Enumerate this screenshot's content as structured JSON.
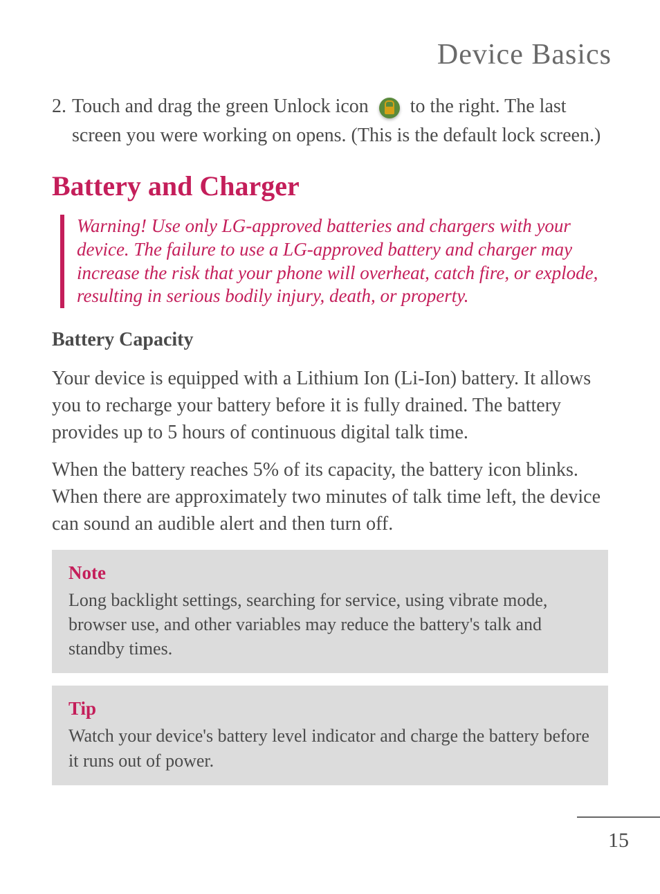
{
  "colors": {
    "accent": "#c41e5a",
    "body_text": "#4a4a4a",
    "header_text": "#6a6a6a",
    "callout_bg": "#dcdcdc",
    "page_bg": "#ffffff",
    "icon_bg": "#5a8a3a",
    "icon_lock": "#d4a017"
  },
  "typography": {
    "header_fontsize": 42,
    "section_title_fontsize": 40,
    "subsection_fontsize": 28,
    "body_fontsize": 28,
    "callout_title_fontsize": 27,
    "callout_text_fontsize": 26,
    "page_number_fontsize": 30,
    "font_family": "Georgia, serif"
  },
  "header": {
    "title": "Device Basics"
  },
  "step2": {
    "number": "2.",
    "text_before_icon": "Touch and drag the green Unlock icon ",
    "text_after_icon": " to the right. The last screen you were working on opens. (This is the default lock screen.)"
  },
  "section": {
    "title": "Battery and Charger",
    "warning": "Warning! Use only LG-approved batteries and chargers with your device. The failure to use a LG-approved battery and charger may increase the risk that your phone will overheat, catch fire, or explode, resulting in serious bodily injury, death, or property."
  },
  "subsection": {
    "title": "Battery Capacity",
    "para1": "Your device is equipped with a Lithium Ion (Li-Ion) battery. It allows you to recharge your battery before it is fully drained. The battery provides up to 5 hours of continuous digital talk time.",
    "para2": "When the battery reaches 5% of its capacity, the battery icon blinks. When there are approximately two minutes of talk time left, the device can sound an audible alert and then turn off."
  },
  "note_box": {
    "title": "Note",
    "text": "Long backlight settings, searching for service, using vibrate mode, browser use, and other variables may reduce the battery's talk and standby times."
  },
  "tip_box": {
    "title": "Tip",
    "text": "Watch your device's battery level indicator and charge the battery before it runs out of power."
  },
  "footer": {
    "page_number": "15"
  }
}
